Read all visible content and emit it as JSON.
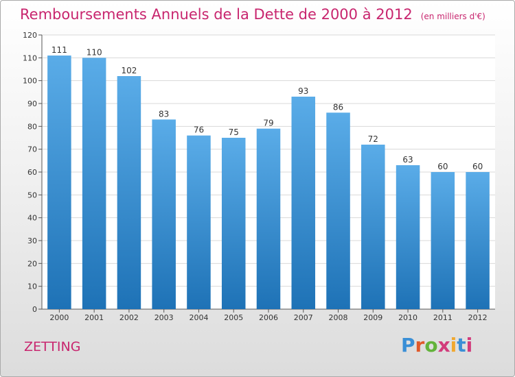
{
  "header": {
    "title": "Remboursements Annuels de la Dette de 2000 à 2012",
    "unit": "(en milliers d'€)"
  },
  "commune": "ZETTING",
  "logo": {
    "text": "Proxiti",
    "letter_colors": [
      "#3a8fd6",
      "#e0592a",
      "#63b33b",
      "#d23b7b",
      "#f0a830",
      "#3a8fd6",
      "#d23b7b"
    ]
  },
  "colors": {
    "bar_top": "#5aace8",
    "bar_bottom": "#1e72b6",
    "label": "#333333",
    "grid": "#d8d8d8",
    "title": "#c8256e"
  },
  "chart_data": {
    "type": "bar",
    "categories": [
      "2000",
      "2001",
      "2002",
      "2003",
      "2004",
      "2005",
      "2006",
      "2007",
      "2008",
      "2009",
      "2010",
      "2011",
      "2012"
    ],
    "values": [
      111,
      110,
      102,
      83,
      76,
      75,
      79,
      93,
      86,
      72,
      63,
      60,
      60
    ],
    "ylim": [
      0,
      120
    ],
    "yticks": [
      0,
      10,
      20,
      30,
      40,
      50,
      60,
      70,
      80,
      90,
      100,
      110,
      120
    ],
    "grid": true,
    "data_labels": true
  }
}
